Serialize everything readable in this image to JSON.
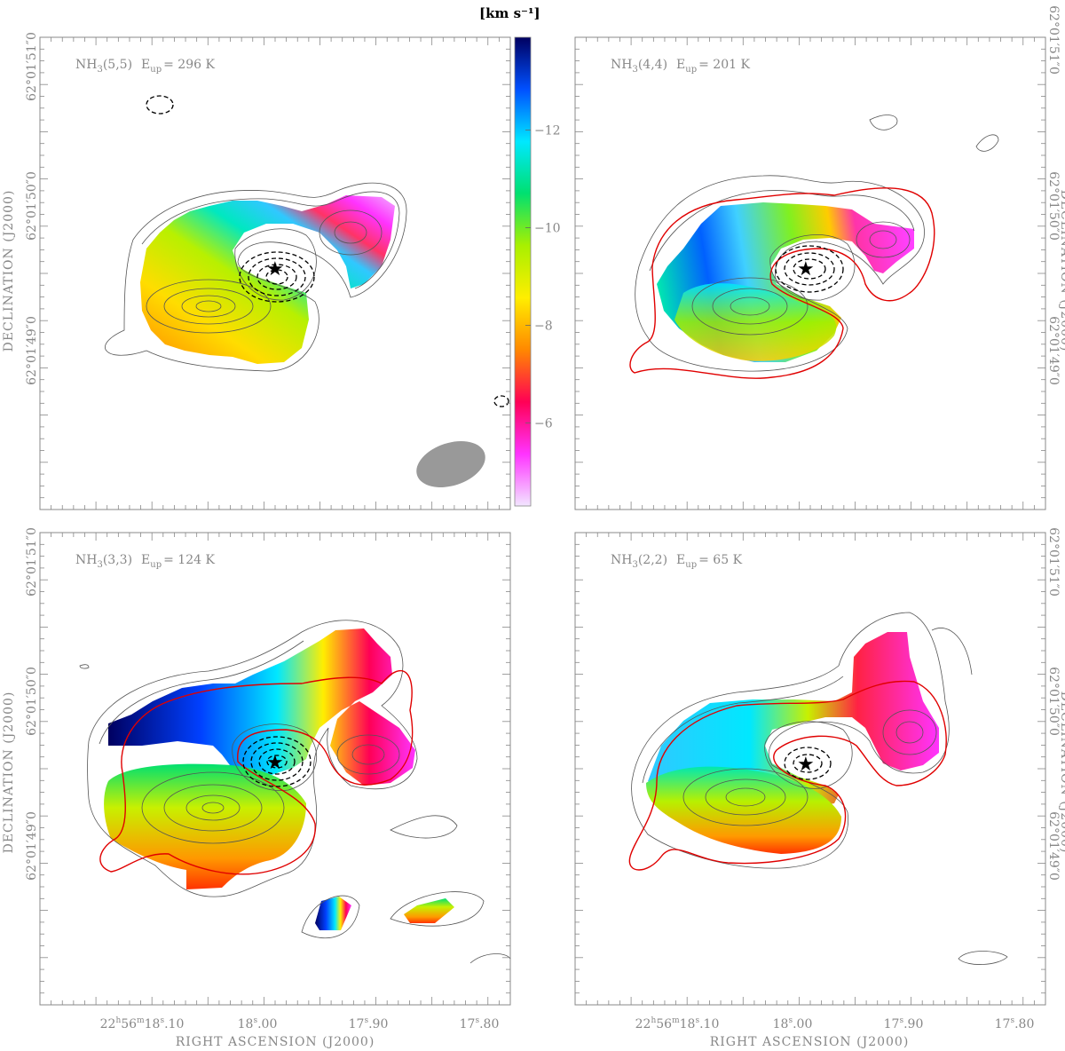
{
  "chart_data": {
    "type": "heatmap",
    "description_type": "velocity-field maps with contours",
    "colorbar": {
      "unit_label": "[km s⁻¹]",
      "range": [
        -4.3,
        -13.9
      ],
      "ticks": [
        -12,
        -10,
        -8,
        -6
      ],
      "tick_labels": [
        "−12",
        "−10",
        "−8",
        "−6"
      ],
      "stops": [
        "#f2e6ff",
        "#ff33ff",
        "#ff0055",
        "#ff8800",
        "#ffee00",
        "#a8f000",
        "#00e070",
        "#00e8ff",
        "#0050ff",
        "#000060"
      ]
    },
    "x_axis": {
      "title": "RIGHT ASCENSION (J2000)",
      "ticks": [
        {
          "label_main": "22",
          "sup1": "h",
          "mid1": "56",
          "sup2": "m",
          "mid2": "18",
          "sup3": "s",
          "tail": ".10"
        },
        {
          "label_main": "18",
          "sup1": "s",
          "tail": ".00"
        },
        {
          "label_main": "17",
          "sup1": "s",
          "tail": ".90"
        },
        {
          "label_main": "17",
          "sup1": "s",
          "tail": ".80"
        }
      ]
    },
    "y_axis": {
      "title": "DECLINATION (J2000)",
      "ticks": [
        "62°01′51″0",
        "62°01′50″0",
        "62°01′49″0"
      ]
    },
    "panels": [
      {
        "id": "nh3-55",
        "molecule": "NH",
        "sub": "3",
        "transition": "(5,5)",
        "eup_label": "E",
        "eup_sub": "up",
        "eup_value": "= 296 K",
        "has_red_contour": false,
        "has_beam": true
      },
      {
        "id": "nh3-44",
        "molecule": "NH",
        "sub": "3",
        "transition": "(4,4)",
        "eup_label": "E",
        "eup_sub": "up",
        "eup_value": "= 201 K",
        "has_red_contour": true,
        "has_beam": false
      },
      {
        "id": "nh3-33",
        "molecule": "NH",
        "sub": "3",
        "transition": "(3,3)",
        "eup_label": "E",
        "eup_sub": "up",
        "eup_value": "= 124 K",
        "has_red_contour": true,
        "has_beam": false
      },
      {
        "id": "nh3-22",
        "molecule": "NH",
        "sub": "3",
        "transition": "(2,2)",
        "eup_label": "E",
        "eup_sub": "up",
        "eup_value": "= 65 K",
        "has_red_contour": true,
        "has_beam": false
      }
    ],
    "colors": {
      "contour": "#555555",
      "red_contour": "#e00000",
      "axis": "#888888",
      "beam": "#999999"
    }
  }
}
